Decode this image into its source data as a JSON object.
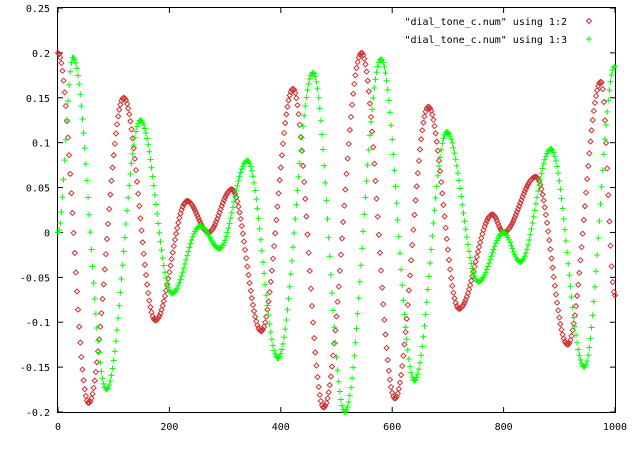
{
  "chart_data": {
    "type": "scatter",
    "title": "",
    "xlabel": "",
    "ylabel": "",
    "xlim": [
      0,
      1000
    ],
    "ylim": [
      -0.2,
      0.25
    ],
    "x_ticks": [
      0,
      200,
      400,
      600,
      800,
      1000
    ],
    "x_tick_labels": [
      "0",
      "200",
      "400",
      "600",
      "800",
      "1000"
    ],
    "y_ticks": [
      -0.2,
      -0.15,
      -0.1,
      -0.05,
      0,
      0.05,
      0.1,
      0.15,
      0.2,
      0.25
    ],
    "y_tick_labels": [
      "-0.2",
      "-0.15",
      "-0.1",
      "-0.05",
      "0",
      "0.05",
      "0.1",
      "0.15",
      "0.2",
      "0.25"
    ],
    "grid": false,
    "legend_position": "top-right",
    "series": [
      {
        "name": "\"dial_tone_c.num\" using 1:2",
        "marker": "diamond",
        "color": "#cc3333",
        "x": [
          0,
          55,
          118,
          175,
          232,
          270,
          312,
          365,
          422,
          477,
          545,
          605,
          665,
          720,
          780,
          800,
          858,
          915,
          975,
          1000
        ],
        "y": [
          0.2,
          -0.19,
          0.15,
          -0.098,
          0.035,
          0.0,
          0.048,
          -0.11,
          0.16,
          -0.195,
          0.2,
          -0.185,
          0.14,
          -0.085,
          0.02,
          0.0,
          0.062,
          -0.125,
          0.168,
          -0.07
        ]
      },
      {
        "name": "\"dial_tone_c.num\" using 1:3",
        "marker": "plus",
        "color": "#00ff00",
        "x": [
          0,
          27,
          87,
          148,
          205,
          255,
          290,
          340,
          395,
          458,
          515,
          580,
          640,
          698,
          755,
          800,
          830,
          885,
          945,
          1000
        ],
        "y": [
          0.0,
          0.195,
          -0.175,
          0.125,
          -0.068,
          0.007,
          -0.018,
          0.08,
          -0.14,
          0.178,
          -0.2,
          0.193,
          -0.165,
          0.112,
          -0.055,
          0.0,
          -0.033,
          0.093,
          -0.15,
          0.185
        ]
      }
    ]
  }
}
